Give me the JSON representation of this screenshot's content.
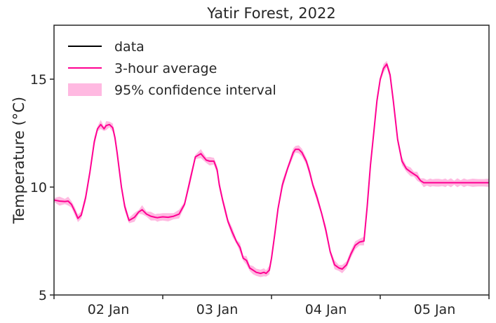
{
  "chart_data": {
    "type": "line",
    "title": "Yatir Forest, 2022",
    "ylabel": "Temperature (°C)",
    "xlabel": "",
    "xlim": [
      1.5,
      5.5
    ],
    "ylim": [
      5,
      17.5
    ],
    "yticks": [
      5,
      10,
      15
    ],
    "xticks_major": [
      2,
      3,
      4,
      5
    ],
    "xtick_labels": [
      "02 Jan",
      "03 Jan",
      "04 Jan",
      "05 Jan"
    ],
    "legend": {
      "placement": "top-left",
      "entries": [
        "data",
        "3-hour average",
        "95% confidence interval"
      ]
    },
    "colors": {
      "data": "#000000",
      "average": "#ff0092",
      "ci": "#ff80c8"
    },
    "series": [
      {
        "name": "3-hour average",
        "x": [
          1.5,
          1.55,
          1.6,
          1.63,
          1.66,
          1.69,
          1.72,
          1.75,
          1.79,
          1.83,
          1.87,
          1.9,
          1.93,
          1.96,
          1.98,
          2.01,
          2.04,
          2.06,
          2.08,
          2.1,
          2.12,
          2.15,
          2.19,
          2.24,
          2.28,
          2.31,
          2.35,
          2.39,
          2.43,
          2.45,
          2.47,
          2.5,
          2.55,
          2.6,
          2.65,
          2.7,
          2.75,
          2.8,
          2.85,
          2.9,
          2.93,
          2.97,
          3.0,
          3.02,
          3.05,
          3.08,
          3.1,
          3.14,
          3.18,
          3.21,
          3.24,
          3.27,
          3.3,
          3.33,
          3.36,
          3.4,
          3.43,
          3.45,
          3.48,
          3.5,
          3.53,
          3.56,
          3.6,
          3.65,
          3.7,
          3.72,
          3.75,
          3.78,
          3.82,
          3.85,
          3.88,
          3.92,
          3.96,
          4.0,
          4.04,
          4.08,
          4.12,
          4.15,
          4.19,
          4.23,
          4.27,
          4.31,
          4.35,
          4.38,
          4.41,
          4.44,
          4.47,
          4.5,
          4.53,
          4.56,
          4.59,
          4.62,
          4.66,
          4.7,
          4.74,
          4.78,
          4.81,
          4.84,
          4.87,
          4.9,
          4.93,
          4.96,
          4.98,
          5.01,
          5.04,
          5.07,
          5.1,
          5.12,
          5.15,
          5.18,
          5.21,
          5.24,
          5.27,
          5.3,
          5.35,
          5.4,
          5.45,
          5.5
        ],
        "y": [
          9.4,
          9.35,
          9.33,
          9.35,
          9.2,
          8.9,
          8.55,
          8.7,
          9.5,
          10.7,
          12.1,
          12.7,
          12.9,
          12.7,
          12.85,
          12.9,
          12.75,
          12.3,
          11.6,
          10.8,
          10.0,
          9.1,
          8.45,
          8.6,
          8.85,
          8.95,
          8.75,
          8.65,
          8.6,
          8.58,
          8.6,
          8.62,
          8.6,
          8.65,
          8.75,
          9.2,
          10.3,
          11.4,
          11.55,
          11.25,
          11.2,
          11.2,
          10.8,
          10.1,
          9.4,
          8.8,
          8.4,
          7.9,
          7.45,
          7.2,
          6.7,
          6.6,
          6.25,
          6.15,
          6.05,
          6.0,
          6.05,
          6.0,
          6.15,
          6.7,
          7.8,
          9.0,
          10.1,
          10.9,
          11.6,
          11.75,
          11.75,
          11.6,
          11.2,
          10.7,
          10.1,
          9.5,
          8.8,
          8.0,
          7.0,
          6.4,
          6.25,
          6.2,
          6.4,
          6.9,
          7.3,
          7.45,
          7.5,
          9.1,
          11.0,
          12.5,
          14.0,
          15.0,
          15.5,
          15.7,
          15.2,
          14.0,
          12.2,
          11.2,
          10.85,
          10.7,
          10.6,
          10.5,
          10.3,
          10.2,
          10.2,
          10.2,
          10.2,
          10.2,
          10.2,
          10.2,
          10.2,
          10.2,
          10.2,
          10.2,
          10.2,
          10.2,
          10.2,
          10.2,
          10.2,
          10.2,
          10.2,
          10.2
        ]
      }
    ]
  }
}
